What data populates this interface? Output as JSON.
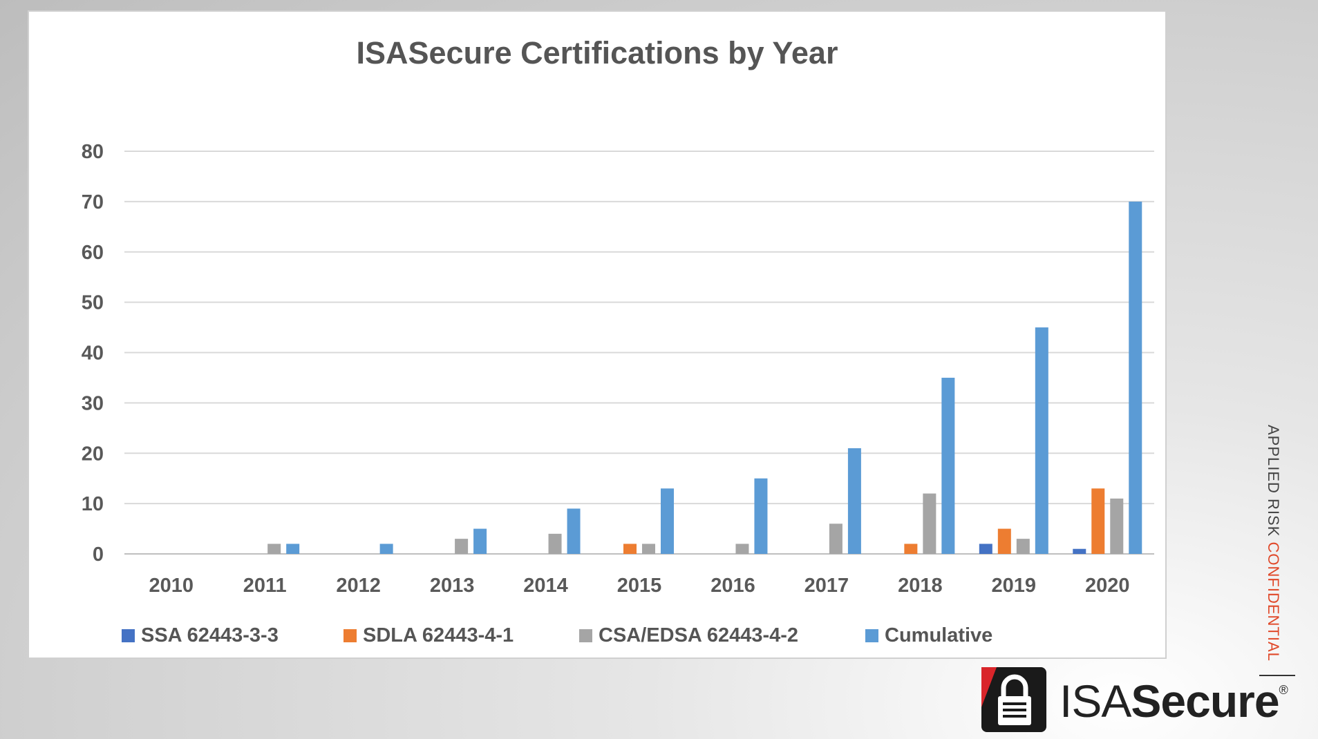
{
  "colors": {
    "series1": "#4472c4",
    "series2": "#ed7d31",
    "series3": "#a5a5a5",
    "series4": "#5b9bd5",
    "accent": "#e0492a"
  },
  "side_text": {
    "part1": "APPLIED RISK ",
    "part2": "CONFIDENTIAL"
  },
  "logo": {
    "icon": "padlock-icon",
    "prefix": "ISA",
    "emphasis": "Secure",
    "mark": "®"
  },
  "chart_data": {
    "type": "bar",
    "title": "ISASecure Certifications by Year",
    "xlabel": "",
    "ylabel": "",
    "ylim": [
      0,
      80
    ],
    "yticks": [
      0,
      10,
      20,
      30,
      40,
      50,
      60,
      70,
      80
    ],
    "grid": true,
    "legend_position": "bottom",
    "categories": [
      "2010",
      "2011",
      "2012",
      "2013",
      "2014",
      "2015",
      "2016",
      "2017",
      "2018",
      "2019",
      "2020"
    ],
    "series": [
      {
        "name": "SSA 62443-3-3",
        "values": [
          0,
          0,
          0,
          0,
          0,
          0,
          0,
          0,
          0,
          2,
          1
        ]
      },
      {
        "name": "SDLA 62443-4-1",
        "values": [
          0,
          0,
          0,
          0,
          0,
          2,
          0,
          0,
          2,
          5,
          13
        ]
      },
      {
        "name": "CSA/EDSA 62443-4-2",
        "values": [
          0,
          2,
          0,
          3,
          4,
          2,
          2,
          6,
          12,
          3,
          11
        ]
      },
      {
        "name": "Cumulative",
        "values": [
          0,
          2,
          2,
          5,
          9,
          13,
          15,
          21,
          35,
          45,
          70
        ]
      }
    ]
  }
}
